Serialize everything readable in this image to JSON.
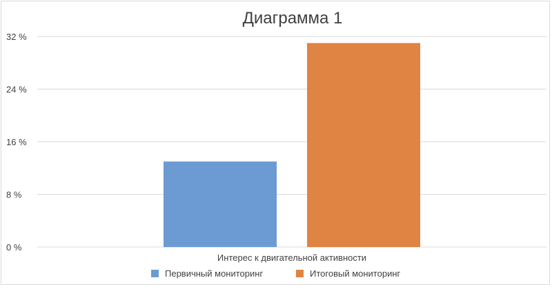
{
  "chart_data": {
    "type": "bar",
    "title": "Диаграмма 1",
    "categories": [
      "Интерес к двигательной активности"
    ],
    "series": [
      {
        "name": "Первичный мониторинг",
        "values": [
          13
        ],
        "color": "#6b9bd2"
      },
      {
        "name": "Итоговый мониторинг",
        "values": [
          31
        ],
        "color": "#e08443"
      }
    ],
    "y_ticks": [
      "0 %",
      "8 %",
      "16 %",
      "24 %",
      "32 %"
    ],
    "y_tick_values": [
      0,
      8,
      16,
      24,
      32
    ],
    "ylim": [
      0,
      32
    ],
    "xlabel": "",
    "ylabel": "",
    "grid": true,
    "legend_position": "bottom"
  }
}
